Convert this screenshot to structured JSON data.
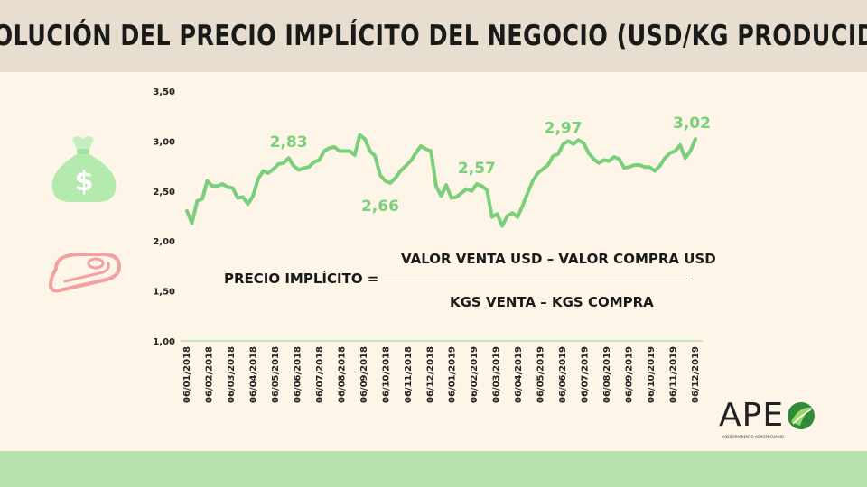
{
  "title": "EVOLUCIÓN DEL PRECIO IMPLÍCITO DEL NEGOCIO (USD/KG PRODUCIDO)",
  "formula": {
    "lhs": "PRECIO IMPLÍCITO =",
    "numerator": "VALOR VENTA USD – VALOR COMPRA USD",
    "denominator": "KGS VENTA – KGS COMPRA"
  },
  "logo": {
    "text": "APE",
    "subtitle": "ASESORAMIENTO AGROPECUARIO"
  },
  "icons": {
    "money": "money-bag-icon",
    "meat": "steak-icon"
  },
  "colors": {
    "line": "#7ad07a",
    "footer": "#b6e0ac",
    "title_bar": "#e8ded0",
    "background": "#fcf5e8",
    "meat_icon": "#f3a0a0"
  },
  "chart_data": {
    "type": "line",
    "ylim": [
      1.0,
      3.5
    ],
    "yticks": [
      "1,00",
      "1,50",
      "2,00",
      "2,50",
      "3,00",
      "3,50"
    ],
    "xticks": [
      "06/01/2018",
      "06/02/2018",
      "06/03/2018",
      "06/04/2018",
      "06/05/2018",
      "06/06/2018",
      "06/07/2018",
      "06/08/2018",
      "06/09/2018",
      "06/10/2018",
      "06/11/2018",
      "06/12/2018",
      "06/01/2019",
      "06/02/2019",
      "06/03/2019",
      "06/04/2019",
      "06/05/2019",
      "06/06/2019",
      "06/07/2019",
      "06/08/2019",
      "06/09/2019",
      "06/10/2019",
      "06/11/2019",
      "06/12/2019"
    ],
    "series": [
      {
        "values": [
          2.3,
          2.18,
          2.4,
          2.42,
          2.6,
          2.55,
          2.55,
          2.57,
          2.54,
          2.53,
          2.43,
          2.44,
          2.37,
          2.45,
          2.62,
          2.7,
          2.68,
          2.72,
          2.77,
          2.78,
          2.83,
          2.75,
          2.71,
          2.73,
          2.74,
          2.79,
          2.81,
          2.9,
          2.93,
          2.94,
          2.9,
          2.9,
          2.9,
          2.86,
          3.06,
          3.02,
          2.9,
          2.85,
          2.66,
          2.6,
          2.58,
          2.63,
          2.7,
          2.75,
          2.8,
          2.88,
          2.95,
          2.92,
          2.9,
          2.55,
          2.45,
          2.56,
          2.43,
          2.44,
          2.48,
          2.52,
          2.5,
          2.57,
          2.55,
          2.51,
          2.24,
          2.27,
          2.15,
          2.25,
          2.28,
          2.24,
          2.35,
          2.48,
          2.6,
          2.68,
          2.72,
          2.76,
          2.85,
          2.87,
          2.97,
          3.0,
          2.97,
          3.01,
          2.98,
          2.88,
          2.82,
          2.78,
          2.81,
          2.8,
          2.84,
          2.82,
          2.73,
          2.74,
          2.76,
          2.76,
          2.74,
          2.74,
          2.7,
          2.75,
          2.83,
          2.88,
          2.9,
          2.96,
          2.83,
          2.9,
          3.02
        ]
      }
    ],
    "annotations": [
      {
        "text": "2,83",
        "index": 20,
        "value": 2.83
      },
      {
        "text": "2,66",
        "index": 38,
        "value": 2.66
      },
      {
        "text": "2,57",
        "index": 57,
        "value": 2.57
      },
      {
        "text": "2,97",
        "index": 74,
        "value": 2.97
      },
      {
        "text": "3,02",
        "index": 100,
        "value": 3.02
      }
    ],
    "grid": false
  }
}
